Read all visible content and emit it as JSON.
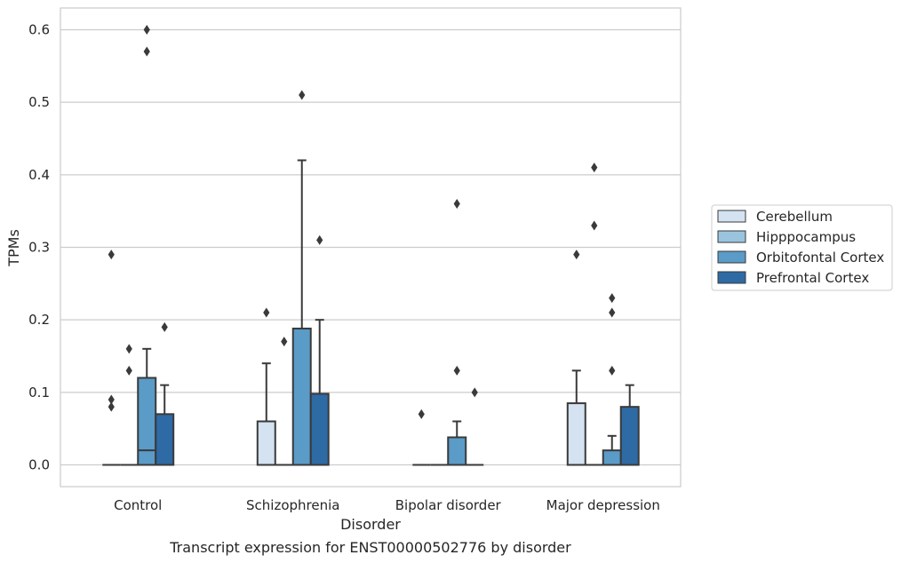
{
  "caption": "Transcript expression for ENST00000502776 by disorder",
  "chart_data": {
    "type": "box",
    "xlabel": "Disorder",
    "ylabel": "TPMs",
    "ylim": [
      -0.03,
      0.63
    ],
    "yticks": [
      0.0,
      0.1,
      0.2,
      0.3,
      0.4,
      0.5,
      0.6
    ],
    "ytick_labels": [
      "0.0",
      "0.1",
      "0.2",
      "0.3",
      "0.4",
      "0.5",
      "0.6"
    ],
    "categories": [
      "Control",
      "Schizophrenia",
      "Bipolar disorder",
      "Major depression"
    ],
    "grid": "horizontal",
    "legend_position": "right",
    "series": [
      {
        "name": "Cerebellum",
        "color": "#d4e2f1",
        "boxes": [
          {
            "q1": 0,
            "median": 0,
            "q3": 0,
            "whislo": 0,
            "whishi": 0,
            "fliers": [
              0.29,
              0.09,
              0.08
            ]
          },
          {
            "q1": 0,
            "median": 0,
            "q3": 0.06,
            "whislo": 0,
            "whishi": 0.14,
            "fliers": [
              0.21
            ]
          },
          {
            "q1": 0,
            "median": 0,
            "q3": 0,
            "whislo": 0,
            "whishi": 0,
            "fliers": [
              0.07
            ]
          },
          {
            "q1": 0,
            "median": 0,
            "q3": 0.085,
            "whislo": 0,
            "whishi": 0.13,
            "fliers": [
              0.29
            ]
          }
        ]
      },
      {
        "name": "Hipppocampus",
        "color": "#9ac4de",
        "boxes": [
          {
            "q1": 0,
            "median": 0,
            "q3": 0,
            "whislo": 0,
            "whishi": 0,
            "fliers": [
              0.16,
              0.13
            ]
          },
          {
            "q1": 0,
            "median": 0,
            "q3": 0,
            "whislo": 0,
            "whishi": 0,
            "fliers": [
              0.17
            ]
          },
          {
            "q1": 0,
            "median": 0,
            "q3": 0,
            "whislo": 0,
            "whishi": 0,
            "fliers": []
          },
          {
            "q1": 0,
            "median": 0,
            "q3": 0,
            "whislo": 0,
            "whishi": 0,
            "fliers": [
              0.41,
              0.33
            ]
          }
        ]
      },
      {
        "name": "Orbitofontal Cortex",
        "color": "#5a9bc8",
        "boxes": [
          {
            "q1": 0,
            "median": 0.02,
            "q3": 0.12,
            "whislo": 0,
            "whishi": 0.16,
            "fliers": [
              0.6,
              0.57
            ]
          },
          {
            "q1": 0,
            "median": 0,
            "q3": 0.188,
            "whislo": 0,
            "whishi": 0.42,
            "fliers": [
              0.51
            ]
          },
          {
            "q1": 0,
            "median": 0,
            "q3": 0.038,
            "whislo": 0,
            "whishi": 0.06,
            "fliers": [
              0.36,
              0.13
            ]
          },
          {
            "q1": 0,
            "median": 0,
            "q3": 0.02,
            "whislo": 0,
            "whishi": 0.04,
            "fliers": [
              0.23,
              0.21,
              0.13
            ]
          }
        ]
      },
      {
        "name": "Prefrontal Cortex",
        "color": "#2e6aa4",
        "boxes": [
          {
            "q1": 0,
            "median": 0,
            "q3": 0.07,
            "whislo": 0,
            "whishi": 0.11,
            "fliers": [
              0.19
            ]
          },
          {
            "q1": 0,
            "median": 0,
            "q3": 0.098,
            "whislo": 0,
            "whishi": 0.2,
            "fliers": [
              0.31
            ]
          },
          {
            "q1": 0,
            "median": 0,
            "q3": 0,
            "whislo": 0,
            "whishi": 0,
            "fliers": [
              0.1
            ]
          },
          {
            "q1": 0,
            "median": 0,
            "q3": 0.08,
            "whislo": 0,
            "whishi": 0.11,
            "fliers": []
          }
        ]
      }
    ]
  }
}
